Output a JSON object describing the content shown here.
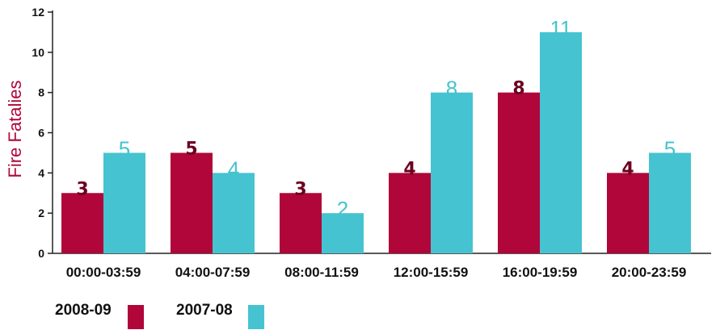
{
  "chart_data": {
    "type": "bar",
    "ylabel": "Fire Fatalies",
    "xlabel": "",
    "ylim": [
      0,
      12
    ],
    "yticks": [
      0,
      2,
      4,
      6,
      8,
      10,
      12
    ],
    "grid": false,
    "legend_position": "bottom-left",
    "categories": [
      "00:00-03:59",
      "04:00-07:59",
      "08:00-11:59",
      "12:00-15:59",
      "16:00-19:59",
      "20:00-23:59"
    ],
    "series": [
      {
        "name": "2008-09",
        "values": [
          3,
          5,
          3,
          4,
          8,
          4
        ],
        "color": "#b0063a"
      },
      {
        "name": "2007-08",
        "values": [
          5,
          4,
          2,
          8,
          11,
          5
        ],
        "color": "#46c3d0"
      }
    ]
  }
}
